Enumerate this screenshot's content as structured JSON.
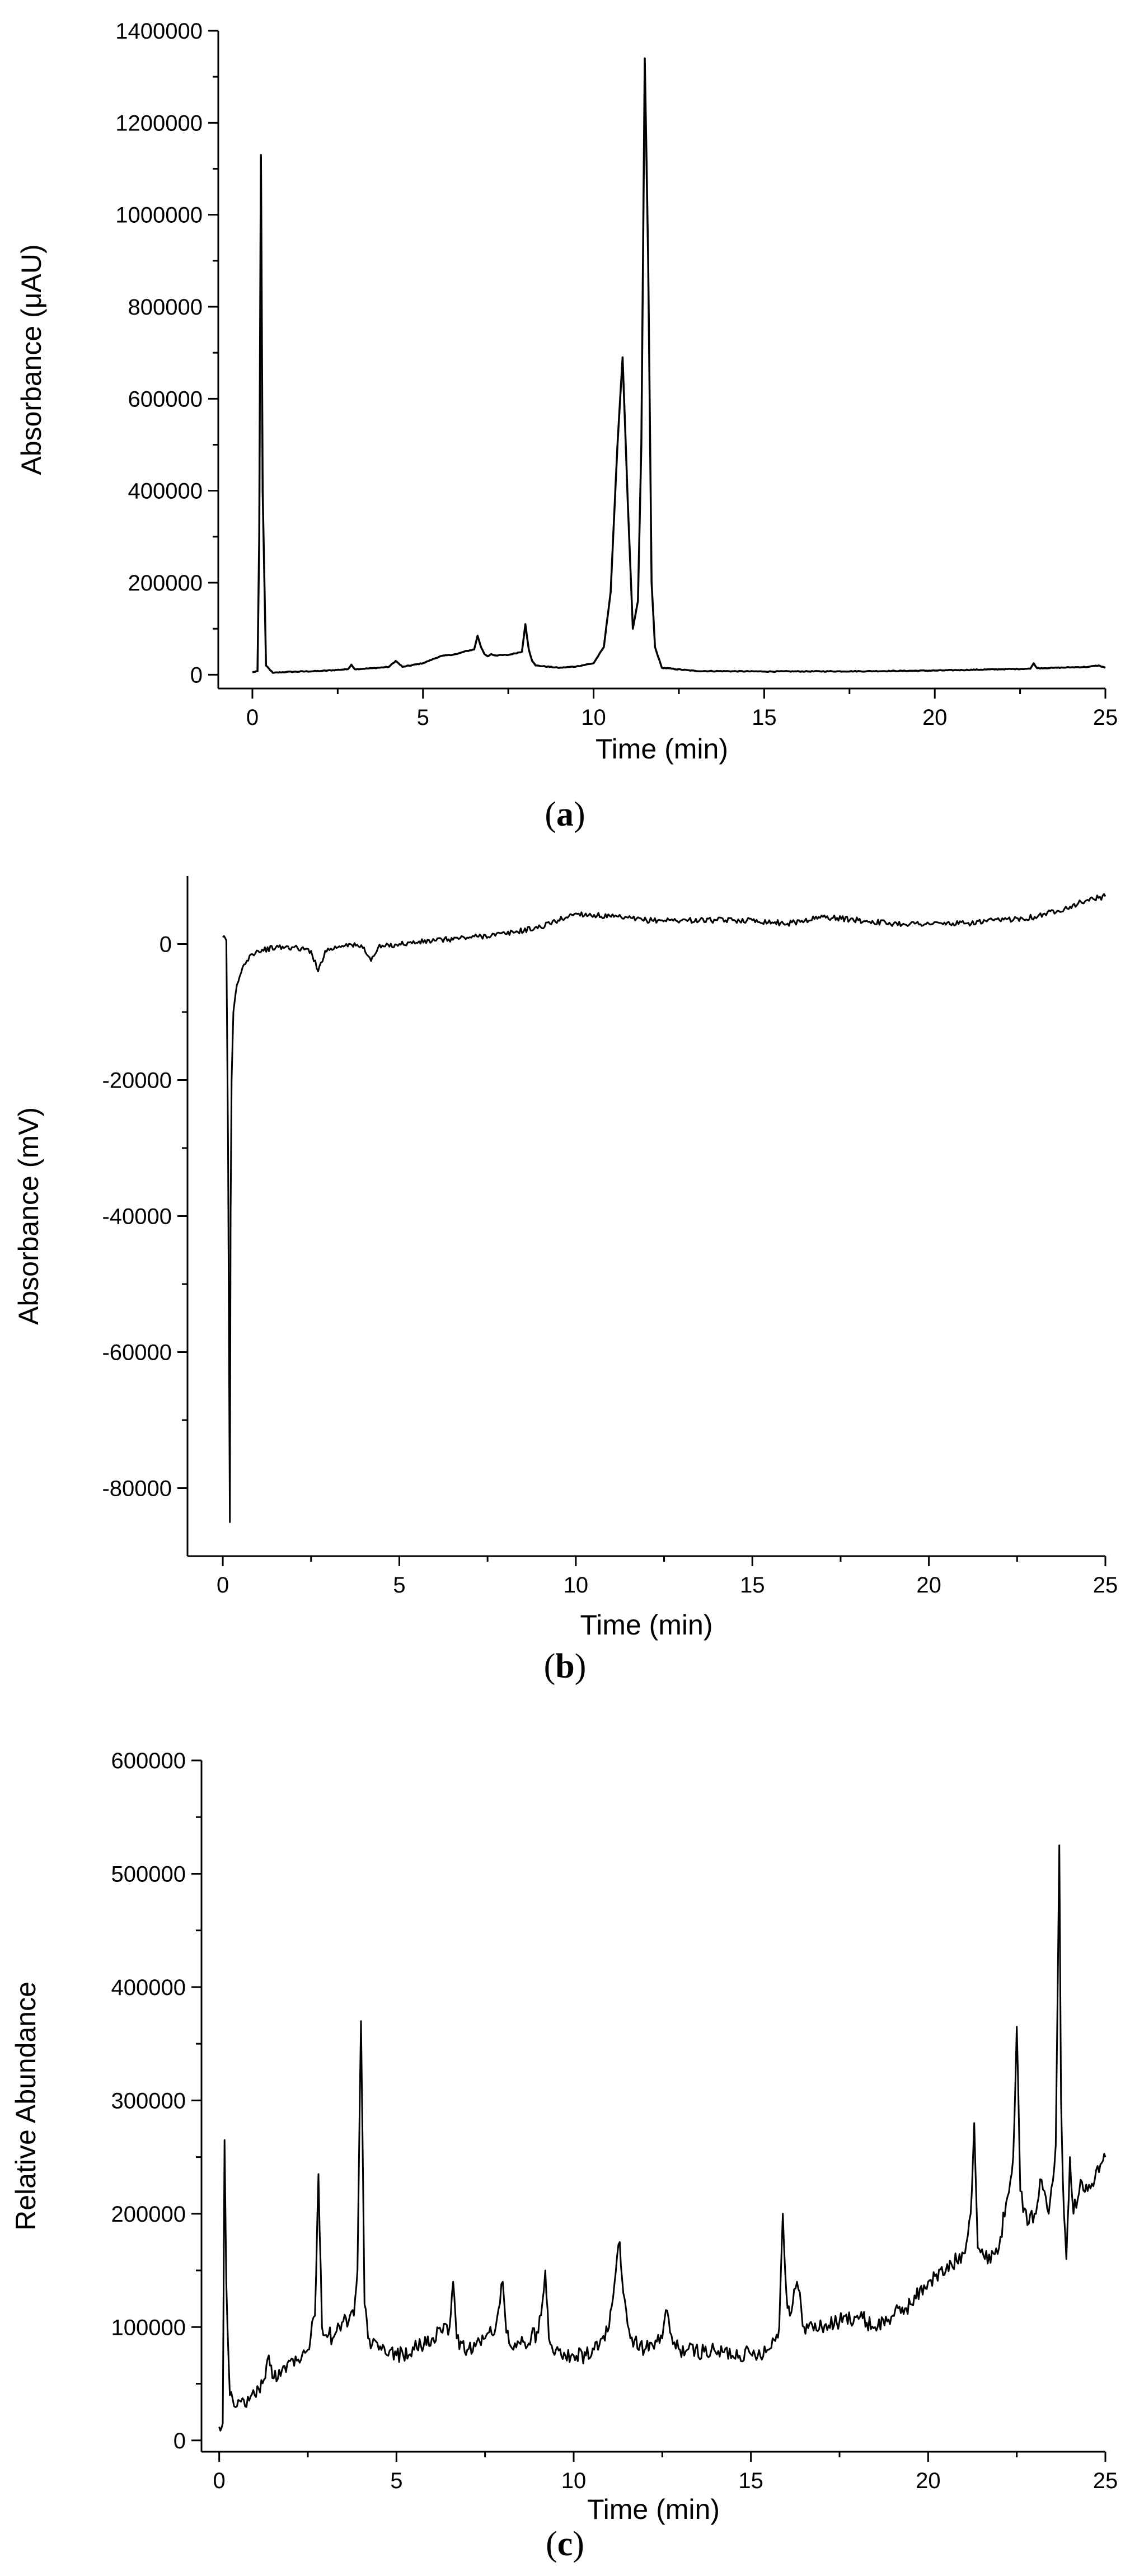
{
  "chart_data": [
    {
      "id": "a",
      "type": "line",
      "caption": "a",
      "xlabel": "Time (min)",
      "ylabel": "Absorbance (μAU)",
      "xlim": [
        -1,
        25
      ],
      "ylim": [
        -30000,
        1400000
      ],
      "xticks": [
        0,
        5,
        10,
        15,
        20,
        25
      ],
      "xtick_labels": [
        "0",
        "5",
        "10",
        "15",
        "20",
        "25"
      ],
      "yticks": [
        0,
        200000,
        400000,
        600000,
        800000,
        1000000,
        1200000,
        1400000
      ],
      "ytick_labels": [
        "0",
        "200000",
        "400000",
        "600000",
        "800000",
        "1000000",
        "1200000",
        "1400000"
      ],
      "grid": false,
      "series": [
        {
          "x": [
            0,
            0.15,
            0.2,
            0.25,
            0.3,
            0.4,
            0.6,
            1,
            2,
            2.8,
            2.9,
            3,
            3.5,
            4,
            4.2,
            4.4,
            5,
            5.5,
            6,
            6.2,
            6.5,
            6.6,
            6.7,
            6.8,
            6.9,
            7,
            7.1,
            7.5,
            7.9,
            8,
            8.1,
            8.2,
            8.3,
            9,
            9.5,
            10,
            10.3,
            10.5,
            10.7,
            10.85,
            11,
            11.15,
            11.3,
            11.4,
            11.5,
            11.6,
            11.7,
            11.8,
            12,
            13,
            15,
            18,
            20,
            22,
            22.8,
            22.9,
            23,
            23.5,
            24,
            24.5,
            24.8,
            25
          ],
          "y": [
            5000,
            8000,
            300000,
            1130000,
            400000,
            20000,
            4000,
            6000,
            8000,
            12000,
            22000,
            12000,
            14000,
            17000,
            30000,
            17000,
            25000,
            40000,
            45000,
            50000,
            55000,
            85000,
            60000,
            45000,
            40000,
            45000,
            42000,
            43000,
            50000,
            110000,
            55000,
            30000,
            20000,
            15000,
            18000,
            25000,
            60000,
            180000,
            500000,
            690000,
            380000,
            100000,
            160000,
            500000,
            1340000,
            900000,
            200000,
            60000,
            15000,
            8000,
            7000,
            7500,
            9000,
            12000,
            13000,
            25000,
            14000,
            15000,
            16000,
            17000,
            20000,
            15000
          ]
        }
      ]
    },
    {
      "id": "b",
      "type": "line",
      "caption": "b",
      "xlabel": "Time (min)",
      "ylabel": "Absorbance (mV)",
      "xlim": [
        -1,
        25
      ],
      "ylim": [
        -90000,
        10000
      ],
      "xticks": [
        0,
        5,
        10,
        15,
        20,
        25
      ],
      "xtick_labels": [
        "0",
        "5",
        "10",
        "15",
        "20",
        "25"
      ],
      "yticks": [
        -80000,
        -60000,
        -40000,
        -20000,
        0
      ],
      "ytick_labels": [
        "-80000",
        "-60000",
        "-40000",
        "-20000",
        "0"
      ],
      "grid": false,
      "series": [
        {
          "x": [
            0,
            0.1,
            0.15,
            0.2,
            0.22,
            0.25,
            0.3,
            0.4,
            0.6,
            0.8,
            1,
            1.5,
            2,
            2.5,
            2.7,
            2.9,
            3.5,
            4,
            4.2,
            4.4,
            5,
            6,
            7,
            8,
            9,
            9.5,
            10,
            11,
            12,
            13,
            14,
            15,
            16,
            17,
            18,
            19,
            20,
            21,
            22,
            23,
            24,
            24.5,
            25
          ],
          "y": [
            1000,
            500,
            -30000,
            -85000,
            -40000,
            -20000,
            -10000,
            -6000,
            -3000,
            -1500,
            -1000,
            -500,
            -500,
            -1000,
            -4000,
            -1000,
            0,
            -500,
            -2500,
            -500,
            0,
            500,
            1000,
            1500,
            2500,
            3500,
            4500,
            4000,
            3500,
            3500,
            3500,
            3500,
            3000,
            4000,
            3500,
            3000,
            3000,
            3000,
            3500,
            4000,
            5500,
            6500,
            7000
          ]
        }
      ]
    },
    {
      "id": "c",
      "type": "line",
      "caption": "c",
      "xlabel": "Time (min)",
      "ylabel": "Relative Abundance",
      "xlim": [
        -0.5,
        25
      ],
      "ylim": [
        -10000,
        600000
      ],
      "xticks": [
        0,
        5,
        10,
        15,
        20,
        25
      ],
      "xtick_labels": [
        "0",
        "5",
        "10",
        "15",
        "20",
        "25"
      ],
      "yticks": [
        0,
        100000,
        200000,
        300000,
        400000,
        500000,
        600000
      ],
      "ytick_labels": [
        "0",
        "100000",
        "200000",
        "300000",
        "400000",
        "500000",
        "600000"
      ],
      "grid": false,
      "series": [
        {
          "x": [
            0,
            0.1,
            0.15,
            0.2,
            0.3,
            0.5,
            1,
            1.3,
            1.4,
            1.5,
            2,
            2.5,
            2.7,
            2.8,
            2.9,
            3.2,
            3.5,
            3.8,
            3.9,
            4,
            4.05,
            4.1,
            4.2,
            4.5,
            5,
            5.5,
            6,
            6.3,
            6.5,
            6.6,
            6.7,
            7,
            7.5,
            7.8,
            8,
            8.1,
            8.3,
            8.5,
            9,
            9.2,
            9.3,
            9.5,
            10,
            10.5,
            10.8,
            11,
            11.3,
            11.4,
            11.6,
            12,
            12.5,
            12.6,
            12.8,
            13,
            14,
            15,
            15.5,
            15.8,
            15.9,
            16,
            16.1,
            16.3,
            16.5,
            17,
            17.5,
            18,
            18.5,
            19,
            19.5,
            20,
            20.5,
            21,
            21.2,
            21.3,
            21.4,
            21.6,
            22,
            22.2,
            22.4,
            22.5,
            22.6,
            22.8,
            23,
            23.2,
            23.4,
            23.6,
            23.7,
            23.75,
            23.8,
            23.9,
            24,
            24.1,
            24.3,
            24.5,
            24.7,
            24.9,
            25
          ],
          "y": [
            12000,
            15000,
            265000,
            140000,
            40000,
            30000,
            40000,
            55000,
            75000,
            55000,
            70000,
            80000,
            110000,
            235000,
            100000,
            90000,
            105000,
            110000,
            150000,
            370000,
            250000,
            120000,
            90000,
            80000,
            75000,
            80000,
            90000,
            95000,
            100000,
            140000,
            90000,
            80000,
            90000,
            100000,
            140000,
            95000,
            80000,
            85000,
            95000,
            150000,
            90000,
            80000,
            75000,
            75000,
            90000,
            100000,
            175000,
            130000,
            90000,
            80000,
            90000,
            115000,
            85000,
            80000,
            78000,
            76000,
            80000,
            100000,
            200000,
            130000,
            110000,
            140000,
            100000,
            100000,
            105000,
            110000,
            100000,
            110000,
            120000,
            140000,
            150000,
            165000,
            200000,
            280000,
            170000,
            160000,
            170000,
            210000,
            250000,
            365000,
            220000,
            190000,
            200000,
            230000,
            200000,
            260000,
            525000,
            300000,
            230000,
            160000,
            250000,
            200000,
            230000,
            220000,
            230000,
            245000,
            250000
          ]
        }
      ]
    }
  ]
}
